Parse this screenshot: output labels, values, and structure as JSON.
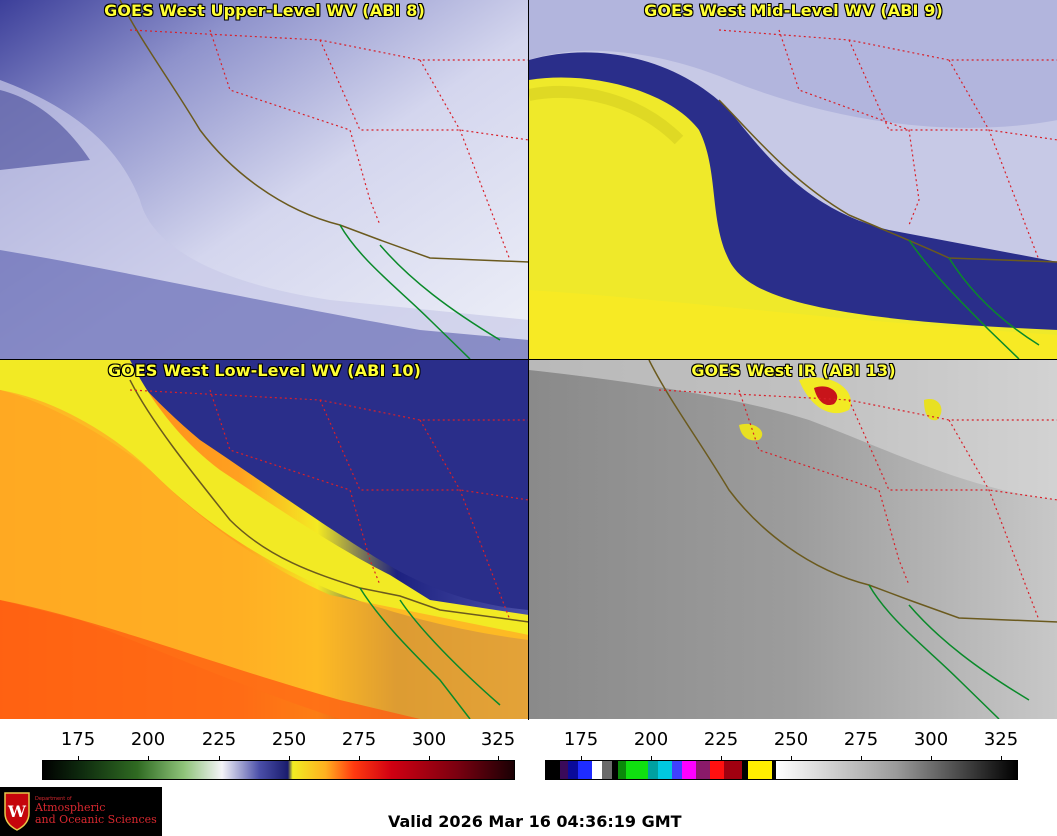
{
  "panels": {
    "upper": {
      "title": "GOES West Upper-Level WV (ABI 8)"
    },
    "mid": {
      "title": "GOES West Mid-Level WV (ABI 9)"
    },
    "low": {
      "title": "GOES West Low-Level WV (ABI 10)"
    },
    "ir": {
      "title": "GOES West IR (ABI 13)"
    }
  },
  "colorbars": {
    "wv": {
      "ticks": [
        "175",
        "200",
        "225",
        "250",
        "275",
        "300",
        "325"
      ]
    },
    "ir": {
      "ticks": [
        "175",
        "200",
        "225",
        "250",
        "275",
        "300",
        "325"
      ]
    }
  },
  "logo": {
    "department": "Department of",
    "line1": "Atmospheric",
    "line2": "and Oceanic Sciences",
    "crest_letter": "W"
  },
  "valid_time": "Valid 2026 Mar 16 04:36:19 GMT",
  "colors": {
    "coastline": "#6b5a1e",
    "mexico_coast": "#0a8a2a",
    "state_borders": "#d8202a",
    "title_text": "#ffff33",
    "logo_red": "#d8282f"
  }
}
